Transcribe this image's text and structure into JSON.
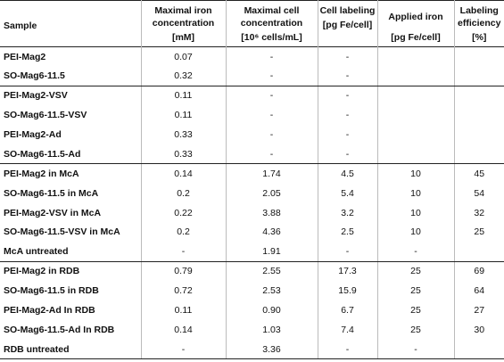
{
  "header": {
    "sample": "Sample",
    "iron_conc": {
      "title": "Maximal iron concentration",
      "unit": "[mM]"
    },
    "cell_conc": {
      "title": "Maximal cell concentration",
      "unit": "[10⁶ cells/mL]"
    },
    "labeling": {
      "title": "Cell labeling",
      "unit": "[pg Fe/cell]"
    },
    "applied": {
      "title": "Applied iron",
      "unit": "[pg Fe/cell]"
    },
    "efficiency": {
      "title": "Labeling efficiency",
      "unit": "[%]"
    }
  },
  "groups": [
    {
      "rows": [
        {
          "sample": "PEI-Mag2",
          "iron": "0.07",
          "cells": "-",
          "labeling": "-",
          "applied": "",
          "eff": ""
        },
        {
          "sample": "SO-Mag6-11.5",
          "iron": "0.32",
          "cells": "-",
          "labeling": "-",
          "applied": "",
          "eff": ""
        }
      ]
    },
    {
      "rows": [
        {
          "sample": "PEI-Mag2-VSV",
          "iron": "0.11",
          "cells": "-",
          "labeling": "-",
          "applied": "",
          "eff": ""
        },
        {
          "sample": "SO-Mag6-11.5-VSV",
          "iron": "0.11",
          "cells": "-",
          "labeling": "-",
          "applied": "",
          "eff": ""
        },
        {
          "sample": "PEI-Mag2-Ad",
          "iron": "0.33",
          "cells": "-",
          "labeling": "-",
          "applied": "",
          "eff": ""
        },
        {
          "sample": "SO-Mag6-11.5-Ad",
          "iron": "0.33",
          "cells": "-",
          "labeling": "-",
          "applied": "",
          "eff": ""
        }
      ]
    },
    {
      "rows": [
        {
          "sample": "PEI-Mag2 in McA",
          "iron": "0.14",
          "cells": "1.74",
          "labeling": "4.5",
          "applied": "10",
          "eff": "45"
        },
        {
          "sample": "SO-Mag6-11.5 in McA",
          "iron": "0.2",
          "cells": "2.05",
          "labeling": "5.4",
          "applied": "10",
          "eff": "54"
        },
        {
          "sample": "PEI-Mag2-VSV in McA",
          "iron": "0.22",
          "cells": "3.88",
          "labeling": "3.2",
          "applied": "10",
          "eff": "32"
        },
        {
          "sample": "SO-Mag6-11.5-VSV in McA",
          "iron": "0.2",
          "cells": "4.36",
          "labeling": "2.5",
          "applied": "10",
          "eff": "25"
        },
        {
          "sample": "McA untreated",
          "iron": "-",
          "cells": "1.91",
          "labeling": "-",
          "applied": "-",
          "eff": ""
        }
      ]
    },
    {
      "rows": [
        {
          "sample": "PEI-Mag2 in RDB",
          "iron": "0.79",
          "cells": "2.55",
          "labeling": "17.3",
          "applied": "25",
          "eff": "69"
        },
        {
          "sample": "SO-Mag6-11.5 in RDB",
          "iron": "0.72",
          "cells": "2.53",
          "labeling": "15.9",
          "applied": "25",
          "eff": "64"
        },
        {
          "sample": "PEI-Mag2-Ad In RDB",
          "iron": "0.11",
          "cells": "0.90",
          "labeling": "6.7",
          "applied": "25",
          "eff": "27"
        },
        {
          "sample": "SO-Mag6-11.5-Ad In RDB",
          "iron": "0.14",
          "cells": "1.03",
          "labeling": "7.4",
          "applied": "25",
          "eff": "30"
        },
        {
          "sample": "RDB untreated",
          "iron": "-",
          "cells": "3.36",
          "labeling": "-",
          "applied": "-",
          "eff": ""
        }
      ]
    }
  ]
}
